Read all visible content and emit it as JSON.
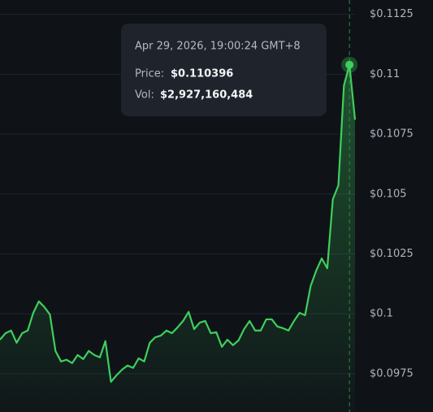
{
  "chart_data": {
    "type": "line",
    "series": [
      {
        "color": "#3ecf5c",
        "values": [
          0.09892,
          0.09919,
          0.0993,
          0.09879,
          0.09919,
          0.0993,
          0.10004,
          0.10052,
          0.10028,
          0.09997,
          0.09845,
          0.09801,
          0.09808,
          0.09794,
          0.09828,
          0.09811,
          0.09845,
          0.09828,
          0.09818,
          0.09886,
          0.09716,
          0.09743,
          0.09767,
          0.09784,
          0.09774,
          0.09814,
          0.09801,
          0.09879,
          0.09902,
          0.09909,
          0.0993,
          0.09919,
          0.09943,
          0.0997,
          0.10008,
          0.09936,
          0.09963,
          0.0997,
          0.09919,
          0.09923,
          0.09862,
          0.09892,
          0.09869,
          0.09889,
          0.09936,
          0.0997,
          0.0993,
          0.0993,
          0.09977,
          0.09977,
          0.09947,
          0.0994,
          0.0993,
          0.0997,
          0.10004,
          0.09994,
          0.10116,
          0.1018,
          0.10231,
          0.1019,
          0.10478,
          0.10536,
          0.10953,
          0.110396,
          0.1081
        ]
      }
    ],
    "ylim": [
      0.0959,
      0.1131
    ],
    "yticks": [
      {
        "value": 0.0975,
        "label": "$0.0975"
      },
      {
        "value": 0.1,
        "label": "$0.1"
      },
      {
        "value": 0.1025,
        "label": "$0.1025"
      },
      {
        "value": 0.105,
        "label": "$0.105"
      },
      {
        "value": 0.1075,
        "label": "$0.1075"
      },
      {
        "value": 0.11,
        "label": "$0.11"
      },
      {
        "value": 0.1125,
        "label": "$0.1125"
      }
    ],
    "grid": true,
    "tooltip": {
      "date": "Apr 29, 2026, 19:00:24 GMT+8",
      "price_label": "Price:",
      "price": "$0.110396",
      "vol_label": "Vol:",
      "vol": "$2,927,160,484"
    }
  }
}
